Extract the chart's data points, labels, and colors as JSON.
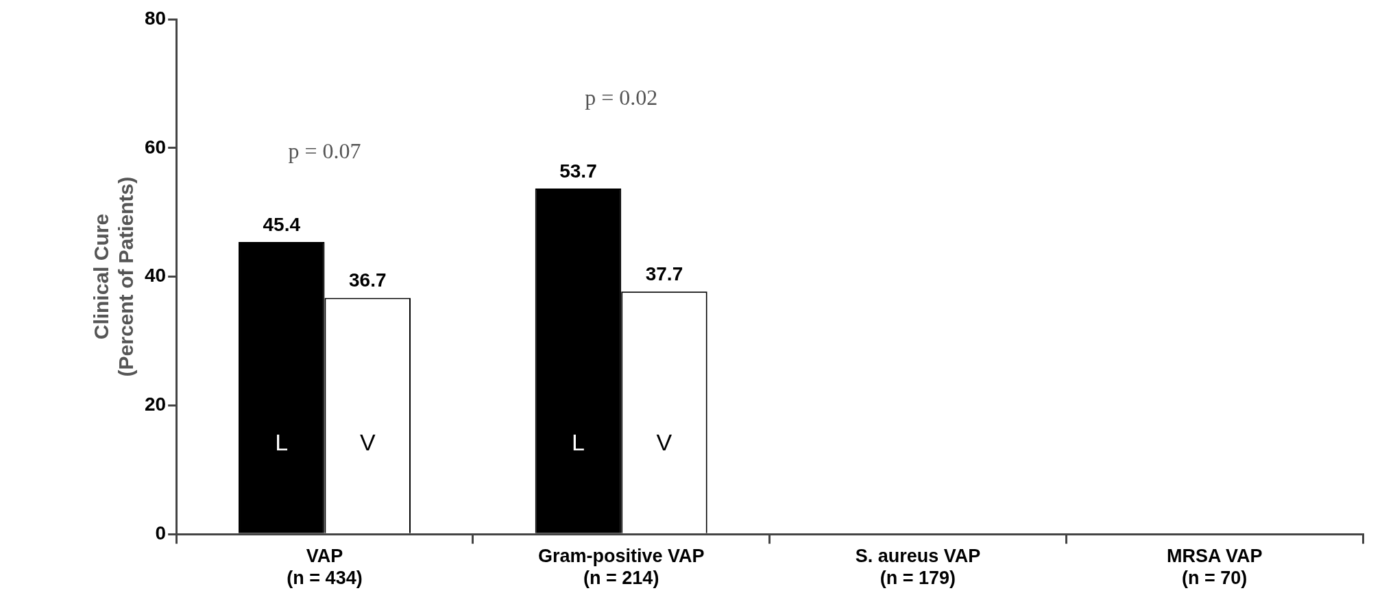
{
  "chart_data": {
    "type": "bar",
    "ylabel": "Clinical Cure\n(Percent of Patients)",
    "categories": [
      "VAP\n(n = 434)",
      "Gram-positive VAP\n(n = 214)",
      "S. aureus VAP\n(n = 179)",
      "MRSA VAP\n(n = 70)"
    ],
    "series": [
      {
        "name": "L",
        "color": "#000000",
        "values": [
          45.4,
          53.7,
          null,
          null
        ]
      },
      {
        "name": "V",
        "color": "#ffffff",
        "values": [
          36.7,
          37.7,
          null,
          null
        ]
      }
    ],
    "ylim": [
      0,
      80
    ],
    "yticks": [
      0,
      20,
      40,
      60,
      80
    ],
    "data_labels": true,
    "annotations": [
      "p = 0.07",
      "p = 0.02"
    ]
  }
}
